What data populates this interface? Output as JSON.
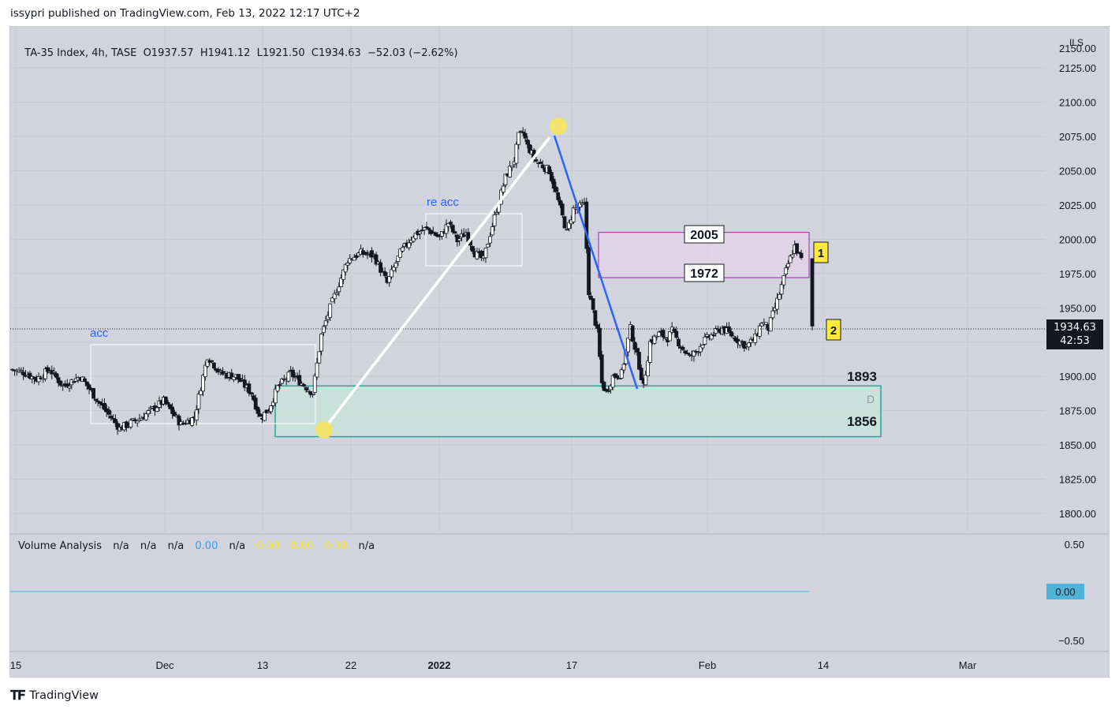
{
  "header": {
    "published": "issypri published on TradingView.com, Feb 13, 2022 12:17 UTC+2"
  },
  "legend": {
    "symbol": "TA-35 Index, 4h, TASE",
    "open": "O1937.57",
    "high": "H1941.12",
    "low": "L1921.50",
    "close": "C1934.63",
    "change": "−52.03 (−2.62%)"
  },
  "currency": "ILS",
  "last_price": {
    "value": "1934.63",
    "countdown": "42:53"
  },
  "indicator": {
    "name": "Volume Analysis",
    "values": [
      "n/a",
      "n/a",
      "n/a",
      "0.00",
      "n/a",
      "0.00",
      "0.00",
      "0.00",
      "n/a"
    ],
    "value_colors": [
      "#131722",
      "#131722",
      "#131722",
      "#2aa0f0",
      "#131722",
      "#ffe712",
      "#ffe712",
      "#ffe712",
      "#131722"
    ],
    "scale": [
      "0.50",
      "−0.50"
    ],
    "current": "0.00"
  },
  "brand": {
    "name": "TradingView"
  },
  "colors": {
    "background": "#d1d4dc",
    "up": "#ffffff",
    "down": "#131722",
    "zone_green": "#26a69a",
    "zone_purple": "#9c27b0",
    "marker_yellow": "#f2e36b",
    "blue_line": "#2962ff"
  },
  "chart_data": {
    "type": "candlestick",
    "timeframe": "4h",
    "y_ticks": [
      "2125.00",
      "2100.00",
      "2075.00",
      "2050.00",
      "2025.00",
      "2000.00",
      "1975.00",
      "1950.00",
      "1925.00",
      "1900.00",
      "1875.00",
      "1850.00",
      "1825.00",
      "1800.00"
    ],
    "ylim": [
      1785,
      2155
    ],
    "x_ticks": [
      "15",
      "Dec",
      "13",
      "22",
      "2022",
      "17",
      "Feb",
      "14",
      "Mar"
    ],
    "path": [
      [
        0,
        1905
      ],
      [
        6,
        1903
      ],
      [
        12,
        1898
      ],
      [
        18,
        1905
      ],
      [
        24,
        1893
      ],
      [
        32,
        1900
      ],
      [
        40,
        1882
      ],
      [
        50,
        1862
      ],
      [
        60,
        1870
      ],
      [
        70,
        1882
      ],
      [
        78,
        1865
      ],
      [
        84,
        1870
      ],
      [
        90,
        1915
      ],
      [
        96,
        1902
      ],
      [
        103,
        1900
      ],
      [
        110,
        1888
      ],
      [
        114,
        1870
      ],
      [
        118,
        1876
      ],
      [
        122,
        1892
      ],
      [
        128,
        1902
      ],
      [
        133,
        1895
      ],
      [
        138,
        1888
      ],
      [
        142,
        1930
      ],
      [
        146,
        1950
      ],
      [
        154,
        1985
      ],
      [
        160,
        1990
      ],
      [
        166,
        1988
      ],
      [
        172,
        1968
      ],
      [
        178,
        1990
      ],
      [
        184,
        2003
      ],
      [
        190,
        2008
      ],
      [
        196,
        2001
      ],
      [
        200,
        2012
      ],
      [
        204,
        1999
      ],
      [
        208,
        2005
      ],
      [
        212,
        1990
      ],
      [
        216,
        1985
      ],
      [
        218,
        1998
      ],
      [
        222,
        2022
      ],
      [
        226,
        2045
      ],
      [
        230,
        2058
      ],
      [
        232,
        2075
      ],
      [
        234,
        2078
      ],
      [
        236,
        2068
      ],
      [
        240,
        2057
      ],
      [
        246,
        2050
      ],
      [
        250,
        2028
      ],
      [
        254,
        2005
      ],
      [
        257,
        2022
      ],
      [
        262,
        2025
      ],
      [
        264,
        1962
      ],
      [
        268,
        1932
      ],
      [
        270,
        1895
      ],
      [
        272,
        1888
      ],
      [
        275,
        1900
      ],
      [
        279,
        1902
      ],
      [
        283,
        1935
      ],
      [
        287,
        1908
      ],
      [
        289,
        1892
      ],
      [
        292,
        1925
      ],
      [
        296,
        1931
      ],
      [
        300,
        1928
      ],
      [
        302,
        1933
      ],
      [
        306,
        1922
      ],
      [
        310,
        1914
      ],
      [
        313,
        1918
      ],
      [
        316,
        1925
      ],
      [
        320,
        1930
      ],
      [
        325,
        1935
      ],
      [
        330,
        1929
      ],
      [
        336,
        1922
      ],
      [
        340,
        1928
      ],
      [
        343,
        1940
      ],
      [
        346,
        1935
      ],
      [
        350,
        1955
      ],
      [
        355,
        1982
      ],
      [
        358,
        1995
      ],
      [
        361,
        1985
      ],
      [
        364,
        1990
      ],
      [
        366,
        1935
      ]
    ],
    "annotations": [
      {
        "type": "text",
        "text": "acc"
      },
      {
        "type": "text",
        "text": "re acc"
      },
      {
        "type": "level",
        "text": "2005"
      },
      {
        "type": "level",
        "text": "1972"
      },
      {
        "type": "level",
        "text": "1893"
      },
      {
        "type": "level",
        "text": "1856"
      },
      {
        "type": "label",
        "text": "D"
      },
      {
        "type": "marker",
        "text": "1"
      },
      {
        "type": "marker",
        "text": "2"
      }
    ],
    "zones": [
      {
        "name": "demand zone",
        "from": 1856,
        "to": 1893
      },
      {
        "name": "supply zone",
        "from": 1972,
        "to": 2005
      }
    ]
  }
}
